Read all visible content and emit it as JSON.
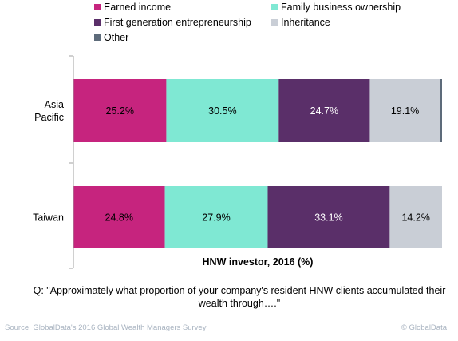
{
  "chart_data": {
    "type": "bar",
    "orientation": "horizontal",
    "stacked": true,
    "categories": [
      "Asia Pacific",
      "Taiwan"
    ],
    "category_lines": [
      [
        "Asia",
        "Pacific"
      ],
      [
        "Taiwan"
      ]
    ],
    "series": [
      {
        "name": "Earned income",
        "color": "#c6247e",
        "values": [
          25.2,
          24.8
        ],
        "labels": [
          "25.2%",
          "24.8%"
        ]
      },
      {
        "name": "Family business ownership",
        "color": "#7fe8d3",
        "values": [
          30.5,
          27.9
        ],
        "labels": [
          "30.5%",
          "27.9%"
        ]
      },
      {
        "name": "First generation entrepreneurship",
        "color": "#5a2f69",
        "values": [
          24.7,
          33.1
        ],
        "labels": [
          "24.7%",
          "33.1%"
        ]
      },
      {
        "name": "Inheritance",
        "color": "#c9ced6",
        "values": [
          19.1,
          14.2
        ],
        "labels": [
          "19.1%",
          "14.2%"
        ]
      },
      {
        "name": "Other",
        "color": "#5d6b7a",
        "values": [
          0.5,
          0.0
        ],
        "labels": [
          "",
          ""
        ]
      }
    ],
    "xlim": [
      0,
      100
    ],
    "xlabel": "HNW investor, 2016 (%)",
    "legend_position": "top",
    "grid": false
  },
  "question": "Q: \"Approximately what proportion of your company's resident HNW clients accumulated their wealth through….\"",
  "footer": {
    "source": "Source: GlobalData's 2016 Global Wealth Managers Survey",
    "copyright": "© GlobalData"
  }
}
